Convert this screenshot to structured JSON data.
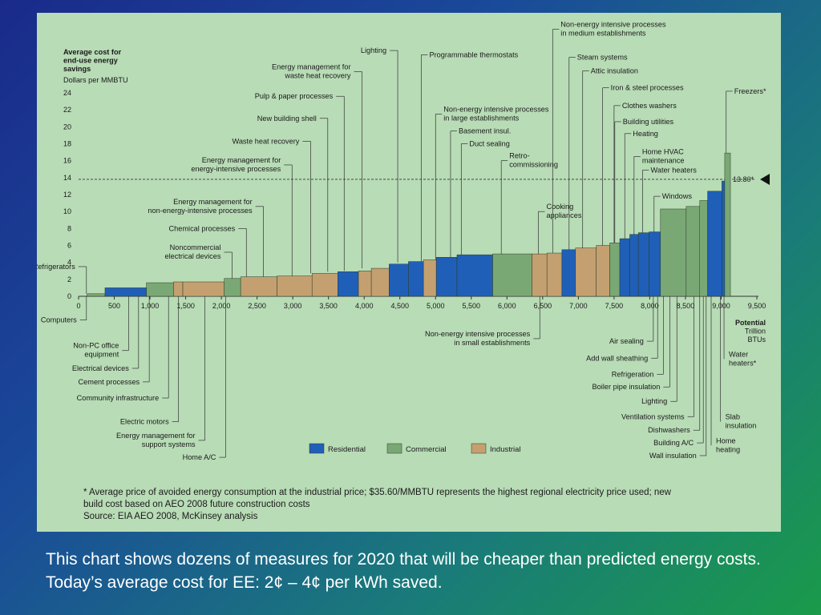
{
  "caption": "This chart shows dozens of measures for 2020 that will be cheaper than predicted energy costs. Today’s average cost for EE: 2¢ – 4¢ per kWh saved.",
  "colors": {
    "Residential": "#1f5fb8",
    "Commercial": "#7aa874",
    "Industrial": "#c4a070",
    "panel": "#b8dcb6"
  },
  "chart_data": {
    "type": "bar",
    "ylabel_lines": [
      "Average cost for",
      "end-use energy",
      "savings"
    ],
    "yunit": "Dollars per MMBTU",
    "xlabel_lines": [
      "Potential",
      "Trillion",
      "BTUs"
    ],
    "ylim": [
      0,
      24
    ],
    "xlim": [
      0,
      9500
    ],
    "yticks": [
      0,
      2,
      4,
      6,
      8,
      10,
      12,
      14,
      16,
      18,
      20,
      22,
      24
    ],
    "xticks": [
      0,
      500,
      1000,
      1500,
      2000,
      2500,
      3000,
      3500,
      4000,
      4500,
      5000,
      5500,
      6000,
      6500,
      7000,
      7500,
      8000,
      8500,
      9000,
      9500
    ],
    "xtick_labels": [
      "0",
      "500",
      "1,000",
      "1,500",
      "2,000",
      "2,500",
      "3,000",
      "3,500",
      "4,000",
      "4,500",
      "5,000",
      "5,500",
      "6,000",
      "6,500",
      "7,000",
      "7,500",
      "8,000",
      "8,500",
      "9,000",
      "9,500"
    ],
    "reference_line": {
      "value": 13.8,
      "label": "13.80*"
    },
    "legend": [
      "Residential",
      "Commercial",
      "Industrial"
    ],
    "legend_placement": "bottom-center",
    "bars": [
      {
        "x0": 120,
        "x1": 370,
        "y": 0.3,
        "sector": "Commercial"
      },
      {
        "x0": 370,
        "x1": 950,
        "y": 1.0,
        "sector": "Residential"
      },
      {
        "x0": 950,
        "x1": 1330,
        "y": 1.6,
        "sector": "Commercial"
      },
      {
        "x0": 1330,
        "x1": 1460,
        "y": 1.7,
        "sector": "Industrial"
      },
      {
        "x0": 1460,
        "x1": 2040,
        "y": 1.7,
        "sector": "Industrial"
      },
      {
        "x0": 2040,
        "x1": 2270,
        "y": 2.1,
        "sector": "Commercial"
      },
      {
        "x0": 2270,
        "x1": 2780,
        "y": 2.3,
        "sector": "Industrial"
      },
      {
        "x0": 2780,
        "x1": 3270,
        "y": 2.4,
        "sector": "Industrial"
      },
      {
        "x0": 3270,
        "x1": 3630,
        "y": 2.7,
        "sector": "Industrial"
      },
      {
        "x0": 3630,
        "x1": 3920,
        "y": 2.9,
        "sector": "Residential"
      },
      {
        "x0": 3920,
        "x1": 4100,
        "y": 3.0,
        "sector": "Industrial"
      },
      {
        "x0": 4100,
        "x1": 4350,
        "y": 3.3,
        "sector": "Industrial"
      },
      {
        "x0": 4350,
        "x1": 4620,
        "y": 3.8,
        "sector": "Residential"
      },
      {
        "x0": 4620,
        "x1": 4830,
        "y": 4.1,
        "sector": "Residential"
      },
      {
        "x0": 4830,
        "x1": 5010,
        "y": 4.3,
        "sector": "Industrial"
      },
      {
        "x0": 5010,
        "x1": 5300,
        "y": 4.6,
        "sector": "Residential"
      },
      {
        "x0": 5300,
        "x1": 5800,
        "y": 4.9,
        "sector": "Residential"
      },
      {
        "x0": 5800,
        "x1": 6350,
        "y": 5.0,
        "sector": "Commercial"
      },
      {
        "x0": 6350,
        "x1": 6560,
        "y": 5.0,
        "sector": "Industrial"
      },
      {
        "x0": 6560,
        "x1": 6770,
        "y": 5.1,
        "sector": "Industrial"
      },
      {
        "x0": 6770,
        "x1": 6960,
        "y": 5.5,
        "sector": "Residential"
      },
      {
        "x0": 6960,
        "x1": 7250,
        "y": 5.7,
        "sector": "Industrial"
      },
      {
        "x0": 7250,
        "x1": 7440,
        "y": 6.0,
        "sector": "Industrial"
      },
      {
        "x0": 7440,
        "x1": 7580,
        "y": 6.3,
        "sector": "Commercial"
      },
      {
        "x0": 7580,
        "x1": 7720,
        "y": 6.8,
        "sector": "Residential"
      },
      {
        "x0": 7720,
        "x1": 7840,
        "y": 7.3,
        "sector": "Residential"
      },
      {
        "x0": 7840,
        "x1": 7990,
        "y": 7.5,
        "sector": "Residential"
      },
      {
        "x0": 7990,
        "x1": 8150,
        "y": 7.6,
        "sector": "Residential"
      },
      {
        "x0": 8150,
        "x1": 8510,
        "y": 10.3,
        "sector": "Commercial"
      },
      {
        "x0": 8510,
        "x1": 8700,
        "y": 10.6,
        "sector": "Commercial"
      },
      {
        "x0": 8700,
        "x1": 8810,
        "y": 11.3,
        "sector": "Commercial"
      },
      {
        "x0": 8810,
        "x1": 9010,
        "y": 12.4,
        "sector": "Residential"
      },
      {
        "x0": 9010,
        "x1": 9050,
        "y": 13.6,
        "sector": "Residential"
      },
      {
        "x0": 9050,
        "x1": 9130,
        "y": 16.9,
        "sector": "Commercial"
      }
    ],
    "annotations_above": [
      {
        "lines": [
          "Lighting"
        ],
        "lx": 4470,
        "ly": 29.0,
        "tx": 4470,
        "ty": 4.0,
        "anchor": "end"
      },
      {
        "lines": [
          "Energy management for",
          "waste heat recovery"
        ],
        "lx": 3970,
        "ly": 26.5,
        "tx": 3970,
        "ty": 3.3,
        "anchor": "end"
      },
      {
        "lines": [
          "Pulp & paper processes"
        ],
        "lx": 3720,
        "ly": 23.6,
        "tx": 3720,
        "ty": 3.0,
        "anchor": "end"
      },
      {
        "lines": [
          "New building shell"
        ],
        "lx": 3490,
        "ly": 21.0,
        "tx": 3490,
        "ty": 2.9,
        "anchor": "end"
      },
      {
        "lines": [
          "Waste heat recovery"
        ],
        "lx": 3250,
        "ly": 18.3,
        "tx": 3250,
        "ty": 2.7,
        "anchor": "end"
      },
      {
        "lines": [
          "Energy management for",
          "energy-intensive processes"
        ],
        "lx": 2990,
        "ly": 15.5,
        "tx": 2990,
        "ty": 2.4,
        "anchor": "end"
      },
      {
        "lines": [
          "Energy management for",
          "non-energy-intensive processes"
        ],
        "lx": 2590,
        "ly": 10.6,
        "tx": 2590,
        "ty": 2.3,
        "anchor": "end"
      },
      {
        "lines": [
          "Chemical processes"
        ],
        "lx": 2350,
        "ly": 8.0,
        "tx": 2350,
        "ty": 2.3,
        "anchor": "end"
      },
      {
        "lines": [
          "Noncommercial",
          "electrical devices"
        ],
        "lx": 2150,
        "ly": 5.2,
        "tx": 2150,
        "ty": 2.1,
        "anchor": "end"
      },
      {
        "lines": [
          "Refrigerators"
        ],
        "lx": 110,
        "ly": 3.5,
        "tx": 110,
        "ty": 0.3,
        "anchor": "end"
      },
      {
        "lines": [
          "Programmable thermostats"
        ],
        "lx": 4800,
        "ly": 28.5,
        "tx": 4800,
        "ty": 4.1,
        "anchor": "start"
      },
      {
        "lines": [
          "Non-energy intensive processes",
          "in large establishments"
        ],
        "lx": 5000,
        "ly": 21.5,
        "tx": 5000,
        "ty": 4.3,
        "anchor": "start"
      },
      {
        "lines": [
          "Basement insul."
        ],
        "lx": 5210,
        "ly": 19.5,
        "tx": 5210,
        "ty": 4.6,
        "anchor": "start"
      },
      {
        "lines": [
          "Duct sealing"
        ],
        "lx": 5360,
        "ly": 18.0,
        "tx": 5360,
        "ty": 4.9,
        "anchor": "start"
      },
      {
        "lines": [
          "Retro-",
          "commissioning"
        ],
        "lx": 5920,
        "ly": 16.0,
        "tx": 5920,
        "ty": 5.0,
        "anchor": "start"
      },
      {
        "lines": [
          "Cooking",
          "appliances"
        ],
        "lx": 6440,
        "ly": 10.0,
        "tx": 6440,
        "ty": 5.0,
        "anchor": "start"
      },
      {
        "lines": [
          "Non-energy intensive processes",
          "in medium establishments"
        ],
        "lx": 6640,
        "ly": 31.5,
        "tx": 6640,
        "ty": 5.1,
        "anchor": "start"
      },
      {
        "lines": [
          "Steam systems"
        ],
        "lx": 6870,
        "ly": 28.2,
        "tx": 6870,
        "ty": 5.5,
        "anchor": "start"
      },
      {
        "lines": [
          "Attic insulation"
        ],
        "lx": 7060,
        "ly": 26.6,
        "tx": 7060,
        "ty": 5.7,
        "anchor": "start"
      },
      {
        "lines": [
          "Iron & steel processes"
        ],
        "lx": 7340,
        "ly": 24.6,
        "tx": 7340,
        "ty": 6.0,
        "anchor": "start"
      },
      {
        "lines": [
          "Clothes washers"
        ],
        "lx": 7500,
        "ly": 22.5,
        "tx": 7500,
        "ty": 6.3,
        "anchor": "start"
      },
      {
        "lines": [
          "Building utilities"
        ],
        "lx": 7510,
        "ly": 20.6,
        "tx": 7510,
        "ty": 6.3,
        "anchor": "start"
      },
      {
        "lines": [
          "Heating"
        ],
        "lx": 7650,
        "ly": 19.2,
        "tx": 7650,
        "ty": 6.8,
        "anchor": "start"
      },
      {
        "lines": [
          "Home HVAC",
          "maintenance"
        ],
        "lx": 7780,
        "ly": 16.5,
        "tx": 7780,
        "ty": 7.3,
        "anchor": "start"
      },
      {
        "lines": [
          "Water heaters"
        ],
        "lx": 7900,
        "ly": 14.9,
        "tx": 7900,
        "ty": 7.5,
        "anchor": "start"
      },
      {
        "lines": [
          "Windows"
        ],
        "lx": 8060,
        "ly": 11.8,
        "tx": 8060,
        "ty": 7.6,
        "anchor": "start"
      },
      {
        "lines": [
          "Freezers*"
        ],
        "lx": 9070,
        "ly": 24.2,
        "tx": 9070,
        "ty": 16.9,
        "anchor": "start"
      }
    ],
    "annotations_below": [
      {
        "lines": [
          "Computers"
        ],
        "tx": 110,
        "lx": 110,
        "ly": -2.8,
        "anchor": "end"
      },
      {
        "lines": [
          "Non-PC office",
          "equipment"
        ],
        "tx": 700,
        "lx": 700,
        "ly": -6.4,
        "anchor": "end"
      },
      {
        "lines": [
          "Electrical devices"
        ],
        "tx": 840,
        "lx": 840,
        "ly": -8.5,
        "anchor": "end"
      },
      {
        "lines": [
          "Cement processes"
        ],
        "tx": 990,
        "lx": 990,
        "ly": -10.1,
        "anchor": "end"
      },
      {
        "lines": [
          "Community infrastructure"
        ],
        "tx": 1260,
        "lx": 1260,
        "ly": -12.0,
        "anchor": "end"
      },
      {
        "lines": [
          "Electric motors"
        ],
        "tx": 1400,
        "lx": 1400,
        "ly": -14.8,
        "anchor": "end"
      },
      {
        "lines": [
          "Energy management for",
          "support systems"
        ],
        "tx": 1770,
        "lx": 1770,
        "ly": -17.0,
        "anchor": "end"
      },
      {
        "lines": [
          "Home A/C"
        ],
        "tx": 2060,
        "lx": 2060,
        "ly": -19.0,
        "anchor": "end"
      },
      {
        "lines": [
          "Non-energy intensive processes",
          "in small establishments"
        ],
        "tx": 6460,
        "lx": 6460,
        "ly": -5.0,
        "anchor": "end"
      },
      {
        "lines": [
          "Air sealing"
        ],
        "tx": 8050,
        "lx": 8050,
        "ly": -5.3,
        "anchor": "end"
      },
      {
        "lines": [
          "Add wall sheathing"
        ],
        "tx": 8110,
        "lx": 8110,
        "ly": -7.3,
        "anchor": "end"
      },
      {
        "lines": [
          "Refrigeration"
        ],
        "tx": 8190,
        "lx": 8190,
        "ly": -9.2,
        "anchor": "end"
      },
      {
        "lines": [
          "Boiler pipe insulation"
        ],
        "tx": 8280,
        "lx": 8280,
        "ly": -10.7,
        "anchor": "end"
      },
      {
        "lines": [
          "Lighting"
        ],
        "tx": 8380,
        "lx": 8380,
        "ly": -12.4,
        "anchor": "end"
      },
      {
        "lines": [
          "Ventilation systems"
        ],
        "tx": 8620,
        "lx": 8620,
        "ly": -14.2,
        "anchor": "end"
      },
      {
        "lines": [
          "Dishwashers"
        ],
        "tx": 8700,
        "lx": 8700,
        "ly": -15.8,
        "anchor": "end"
      },
      {
        "lines": [
          "Building A/C"
        ],
        "tx": 8750,
        "lx": 8750,
        "ly": -17.3,
        "anchor": "end"
      },
      {
        "lines": [
          "Wall insulation"
        ],
        "tx": 8790,
        "lx": 8790,
        "ly": -18.8,
        "anchor": "end"
      },
      {
        "lines": [
          "Home",
          "heating"
        ],
        "tx": 8860,
        "lx": 8860,
        "ly": -17.6,
        "anchor": "start",
        "side": "right"
      },
      {
        "lines": [
          "Slab",
          "insulation"
        ],
        "tx": 8990,
        "lx": 8990,
        "ly": -14.8,
        "anchor": "start",
        "side": "right"
      },
      {
        "lines": [
          "Water",
          "heaters*"
        ],
        "tx": 9040,
        "lx": 9040,
        "ly": -7.4,
        "anchor": "start",
        "side": "right"
      }
    ],
    "footnote_lines": [
      "*  Average price of avoided energy consumption at the industrial price; $35.60/MMBTU represents the highest regional electricity price used; new",
      "    build cost based on AEO 2008 future construction costs",
      "    Source: EIA AEO 2008, McKinsey analysis"
    ]
  }
}
